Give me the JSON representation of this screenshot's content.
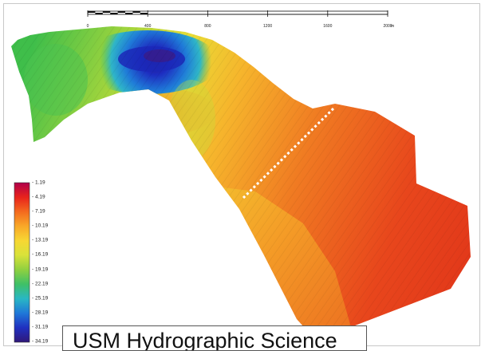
{
  "scale_bar": {
    "ticks": [
      "0",
      "400",
      "800",
      "1200",
      "1600",
      "2000"
    ],
    "unit": "m"
  },
  "depth_legend": {
    "labels": [
      "1.19",
      "4.19",
      "7.19",
      "10.19",
      "13.19",
      "16.19",
      "19.19",
      "22.19",
      "25.19",
      "28.19",
      "31.19",
      "34.19"
    ],
    "colors": [
      "#b0004a",
      "#e8231c",
      "#f46a1e",
      "#f8a828",
      "#f7d733",
      "#d9e23a",
      "#8fd040",
      "#3fc066",
      "#29b7c4",
      "#1f78d8",
      "#2030c0",
      "#301878"
    ]
  },
  "caption": {
    "text": "USM Hydrographic Science"
  }
}
